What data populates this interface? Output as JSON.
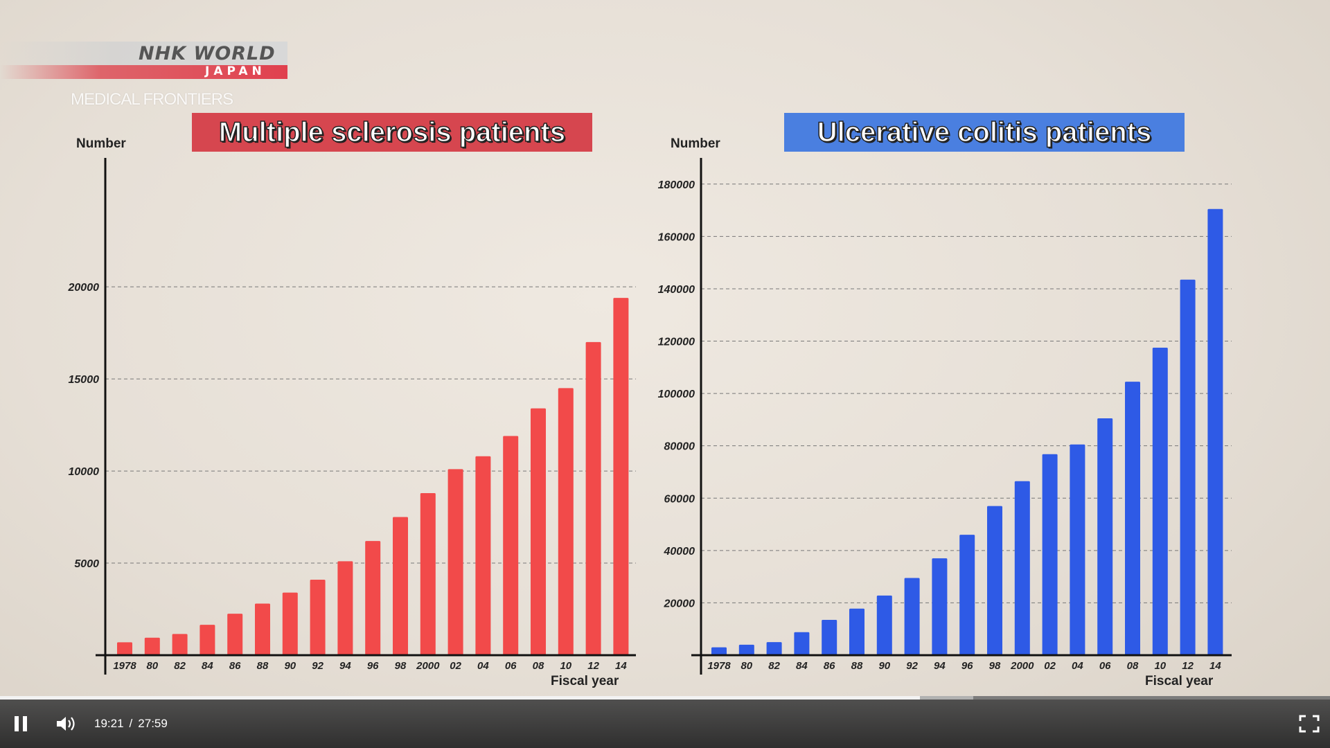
{
  "broadcaster": {
    "logo_main": "NHK WORLD",
    "logo_sub": "JAPAN",
    "program": "MEDICAL FRONTIERS"
  },
  "chart_data": [
    {
      "type": "bar",
      "title": "Multiple sclerosis patients",
      "ylabel": "Number",
      "xlabel": "Fiscal year",
      "color": "#f24a4a",
      "title_bg": "#d6464f",
      "categories": [
        "1978",
        "80",
        "82",
        "84",
        "86",
        "88",
        "90",
        "92",
        "94",
        "96",
        "98",
        "2000",
        "02",
        "04",
        "06",
        "08",
        "10",
        "12",
        "14"
      ],
      "values": [
        700,
        950,
        1150,
        1650,
        2250,
        2800,
        3400,
        4100,
        5100,
        6200,
        7500,
        8800,
        10100,
        10800,
        11900,
        13400,
        14500,
        17000,
        19400
      ],
      "yticks": [
        5000,
        10000,
        15000,
        20000
      ],
      "ytick_labels": [
        "5000",
        "10000",
        "15000",
        "20000"
      ],
      "ylim": [
        0,
        27000
      ],
      "grid": true
    },
    {
      "type": "bar",
      "title": "Ulcerative colitis patients",
      "ylabel": "Number",
      "xlabel": "Fiscal year",
      "color": "#2e5ae6",
      "title_bg": "#4a7fe0",
      "categories": [
        "1978",
        "80",
        "82",
        "84",
        "86",
        "88",
        "90",
        "92",
        "94",
        "96",
        "98",
        "2000",
        "02",
        "04",
        "06",
        "08",
        "10",
        "12",
        "14"
      ],
      "values": [
        3000,
        4000,
        5000,
        8800,
        13500,
        17800,
        22800,
        29500,
        37000,
        46000,
        57000,
        66500,
        76800,
        80500,
        90500,
        104500,
        117500,
        143500,
        170500
      ],
      "yticks": [
        20000,
        40000,
        60000,
        80000,
        100000,
        120000,
        140000,
        160000,
        180000
      ],
      "ytick_labels": [
        "20000",
        "40000",
        "60000",
        "80000",
        "100000",
        "120000",
        "140000",
        "160000",
        "180000"
      ],
      "ylim": [
        0,
        190000
      ],
      "grid": true
    }
  ],
  "player": {
    "current_time": "19:21",
    "separator": "/",
    "duration": "27:59",
    "played_fraction": 0.6915,
    "buffered_fraction": 0.732,
    "pause_icon": "pause-icon",
    "volume_icon": "volume-icon",
    "fullscreen_icon": "fullscreen-icon"
  }
}
